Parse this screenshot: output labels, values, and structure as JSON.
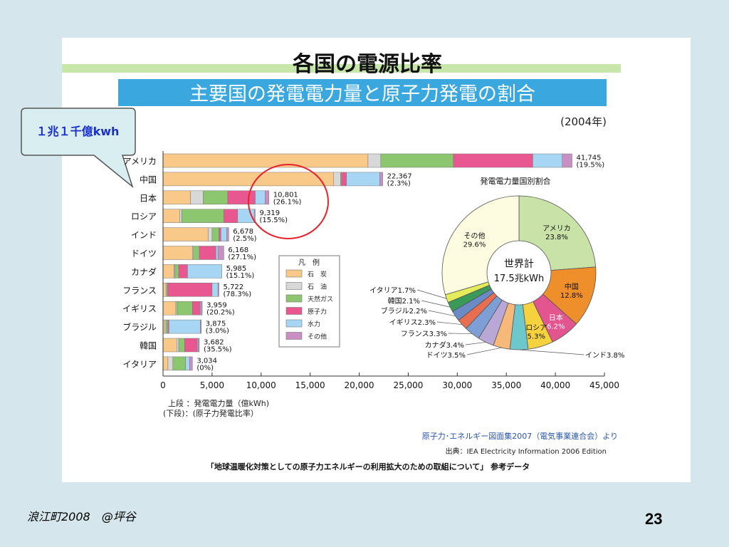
{
  "slide": {
    "title": "各国の電源比率",
    "banner": "主要国の発電電力量と原子力発電の割合",
    "year": "(2004年)",
    "callout": "１兆１千億kwh",
    "footer_left": "浪江町2008　@坪谷",
    "page_number": "23",
    "source_line1": "原子力･エネルギー図面集2007（電気事業連合会）より",
    "source_line2": "出典：IEA Electricity Information 2006 Edition",
    "bottom_note": "「地球温暖化対策としての原子力エネルギーの利用拡大のための取組について」 参考データ",
    "axis_note1": "上段 ：発電電力量（億kWh)",
    "axis_note2": "(下段)：(原子力発電比率）",
    "colors": {
      "background": "#d5e7ec",
      "banner": "#3aa7de",
      "callout": "#d9eef0",
      "callout_text": "#1a2fd0",
      "highlight_circle": "#e8202a"
    }
  },
  "chart_data": [
    {
      "type": "bar",
      "stacked": true,
      "orientation": "horizontal",
      "categories": [
        "アメリカ",
        "中国",
        "日本",
        "ロシア",
        "インド",
        "ドイツ",
        "カナダ",
        "フランス",
        "イギリス",
        "ブラジル",
        "韓国",
        "イタリア"
      ],
      "totals_label": [
        "41,745",
        "22,367",
        "10,801",
        "9,319",
        "6,678",
        "6,168",
        "5,985",
        "5,722",
        "3,959",
        "3,875",
        "3,682",
        "3,034"
      ],
      "nuclear_label": [
        "(19.5%)",
        "(2.3%)",
        "(26.1%)",
        "(15.5%)",
        "(2.5%)",
        "(27.1%)",
        "(15.1%)",
        "(78.3%)",
        "(20.2%)",
        "(3.0%)",
        "(35.5%)",
        "(0%)"
      ],
      "series": [
        {
          "name": "石　炭",
          "color": "#f9c98a",
          "values": [
            20900,
            17400,
            2800,
            1700,
            4600,
            3000,
            1100,
            300,
            1300,
            200,
            1400,
            500
          ]
        },
        {
          "name": "石　油",
          "color": "#d8d8d8",
          "values": [
            1300,
            700,
            1300,
            200,
            400,
            100,
            100,
            100,
            100,
            100,
            200,
            500
          ]
        },
        {
          "name": "天然ガス",
          "color": "#8cc66e",
          "values": [
            7400,
            100,
            2500,
            4300,
            700,
            600,
            400,
            100,
            1600,
            200,
            600,
            1300
          ]
        },
        {
          "name": "原子力",
          "color": "#e8578f",
          "values": [
            8100,
            500,
            2800,
            1400,
            200,
            1700,
            900,
            4500,
            800,
            100,
            1300,
            0
          ]
        },
        {
          "name": "水力",
          "color": "#a6d6f3",
          "values": [
            3000,
            3400,
            1000,
            1700,
            600,
            200,
            3500,
            600,
            100,
            3200,
            100,
            400
          ]
        },
        {
          "name": "その他",
          "color": "#c890c2",
          "values": [
            1000,
            300,
            400,
            100,
            200,
            600,
            0,
            100,
            100,
            100,
            100,
            300
          ]
        }
      ],
      "xlim": [
        0,
        45000
      ],
      "xticks": [
        "0",
        "5,000",
        "10,000",
        "15,000",
        "20,000",
        "25,000",
        "30,000",
        "35,000",
        "40,000",
        "45,000"
      ],
      "legend_title": "凡　例",
      "legend": [
        "石　炭",
        "石　油",
        "天然ガス",
        "原子力",
        "水力",
        "その他"
      ],
      "legend_position": "center"
    },
    {
      "type": "pie",
      "title": "発電電力量国別割合",
      "center_label1": "世界計",
      "center_label2": "17.5兆kWh",
      "slices": [
        {
          "label": "アメリカ",
          "value": 23.8,
          "value_label": "23.8%",
          "color": "#c8e2a8"
        },
        {
          "label": "中国",
          "value": 12.8,
          "value_label": "12.8%",
          "color": "#ef8f2c"
        },
        {
          "label": "日本",
          "value": 6.2,
          "value_label": "6.2%",
          "color": "#e2558e"
        },
        {
          "label": "ロシア",
          "value": 5.3,
          "value_label": "5.3%",
          "color": "#f6d23e"
        },
        {
          "label": "インド",
          "value": 3.8,
          "value_label": "インド3.8%",
          "color": "#6cc8cc"
        },
        {
          "label": "ドイツ",
          "value": 3.5,
          "value_label": "ドイツ3.5%",
          "color": "#f7b97a"
        },
        {
          "label": "カナダ",
          "value": 3.4,
          "value_label": "カナダ3.4%",
          "color": "#b9a7d6"
        },
        {
          "label": "フランス",
          "value": 3.3,
          "value_label": "フランス3.3%",
          "color": "#7e9fd6"
        },
        {
          "label": "イギリス",
          "value": 2.3,
          "value_label": "イギリス2.3%",
          "color": "#e86e52"
        },
        {
          "label": "ブラジル",
          "value": 2.2,
          "value_label": "ブラジル2.2%",
          "color": "#6a8bc6"
        },
        {
          "label": "韓国",
          "value": 2.1,
          "value_label": "韓国2.1%",
          "color": "#3a9a58"
        },
        {
          "label": "イタリア",
          "value": 1.7,
          "value_label": "イタリア1.7%",
          "color": "#e4ec5a"
        },
        {
          "label": "その他",
          "value": 29.6,
          "value_label": "29.6%",
          "color": "#fdfbe0"
        }
      ]
    }
  ]
}
